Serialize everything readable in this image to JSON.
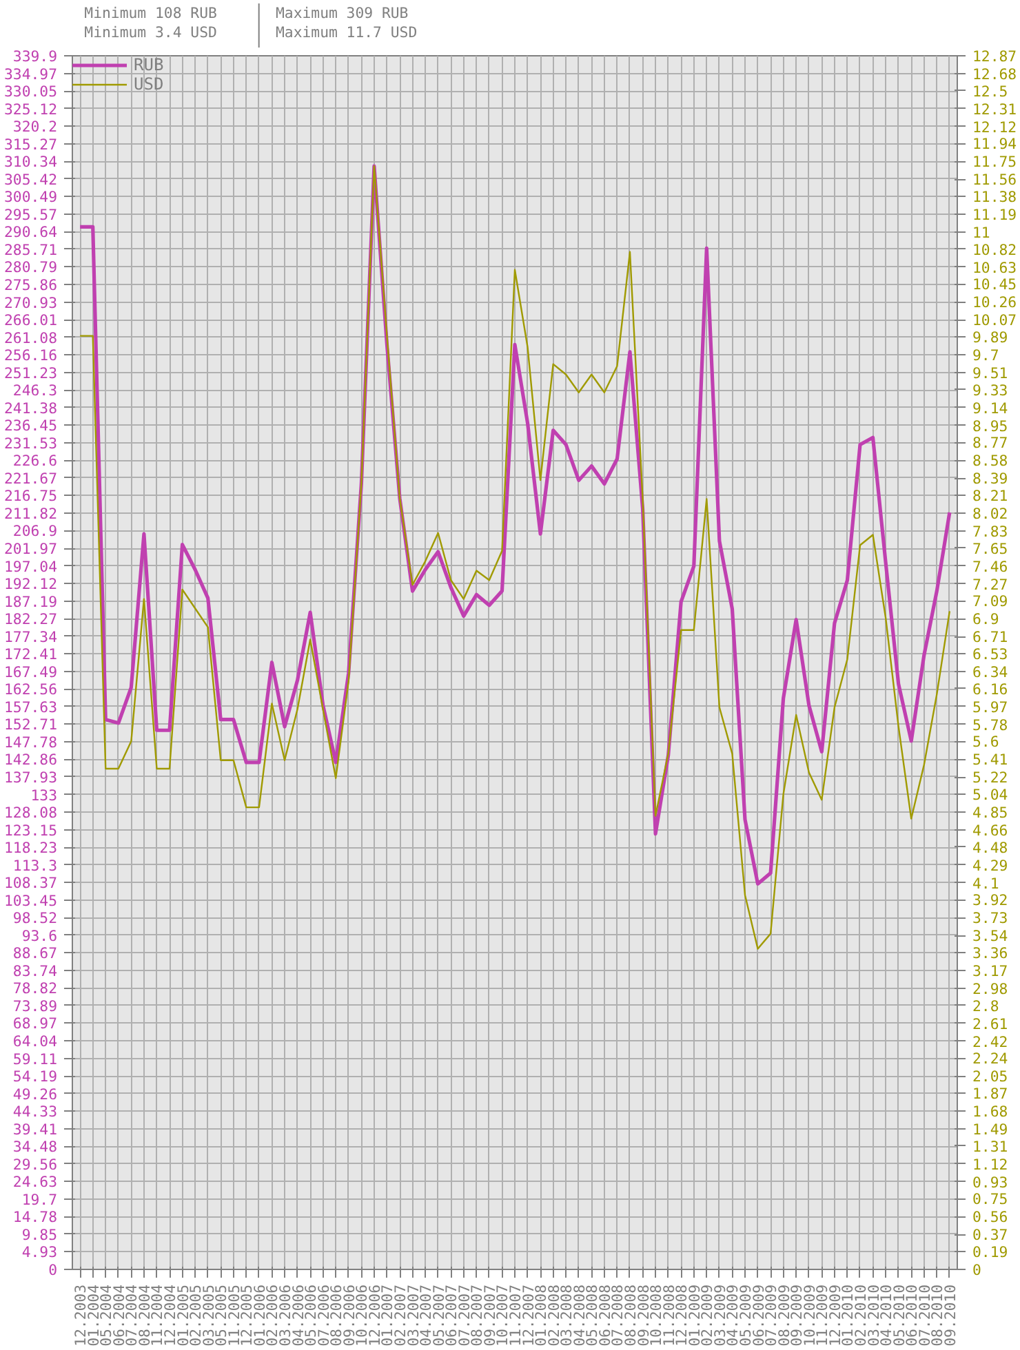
{
  "chart_data": {
    "type": "line",
    "annotations": [
      "Minimum 108 RUB",
      "Minimum 3.4 USD",
      "Maximum 309 RUB",
      "Maximum 11.7 USD"
    ],
    "categories": [
      "12.2003",
      "01.2004",
      "05.2004",
      "06.2004",
      "07.2004",
      "08.2004",
      "11.2004",
      "12.2004",
      "01.2005",
      "02.2005",
      "03.2005",
      "05.2005",
      "11.2005",
      "12.2005",
      "01.2006",
      "02.2006",
      "03.2006",
      "04.2006",
      "05.2006",
      "07.2006",
      "08.2006",
      "09.2006",
      "10.2006",
      "12.2006",
      "01.2007",
      "02.2007",
      "03.2007",
      "04.2007",
      "05.2007",
      "06.2007",
      "07.2007",
      "08.2007",
      "09.2007",
      "10.2007",
      "11.2007",
      "12.2007",
      "01.2008",
      "02.2008",
      "03.2008",
      "04.2008",
      "05.2008",
      "06.2008",
      "07.2008",
      "08.2008",
      "09.2008",
      "10.2008",
      "11.2008",
      "12.2008",
      "01.2009",
      "02.2009",
      "03.2009",
      "04.2009",
      "05.2009",
      "06.2009",
      "07.2009",
      "08.2009",
      "09.2009",
      "10.2009",
      "11.2009",
      "12.2009",
      "01.2010",
      "02.2010",
      "03.2010",
      "04.2010",
      "05.2010",
      "06.2010",
      "07.2010",
      "08.2010",
      "09.2010"
    ],
    "series": [
      {
        "name": "RUB",
        "color": "#c040b0",
        "values": [
          292,
          292,
          154,
          153,
          163,
          206,
          151,
          151,
          203,
          196,
          188,
          154,
          154,
          142,
          142,
          170,
          152,
          165,
          184,
          158,
          142,
          167,
          220,
          309,
          259,
          216,
          190,
          196,
          201,
          191,
          183,
          189,
          186,
          190,
          259,
          237,
          206,
          235,
          231,
          221,
          225,
          220,
          227,
          257,
          213,
          122,
          144,
          187,
          197,
          286,
          204,
          185,
          126,
          108,
          111,
          160,
          182,
          158,
          145,
          181,
          193,
          231,
          233,
          198,
          164,
          148,
          172,
          190,
          212
        ]
      },
      {
        "name": "USD",
        "color": "#a09a00",
        "axis": "y2",
        "values": [
          9.9,
          9.9,
          5.31,
          5.31,
          5.6,
          7.11,
          5.31,
          5.31,
          7.21,
          7.01,
          6.81,
          5.4,
          5.4,
          4.9,
          4.9,
          6.0,
          5.4,
          5.94,
          6.68,
          5.94,
          5.21,
          6.24,
          8.33,
          11.7,
          9.9,
          8.18,
          7.26,
          7.51,
          7.81,
          7.31,
          7.11,
          7.41,
          7.31,
          7.62,
          10.6,
          9.78,
          8.37,
          9.6,
          9.49,
          9.3,
          9.49,
          9.3,
          9.58,
          10.79,
          8.17,
          4.81,
          5.47,
          6.78,
          6.78,
          8.17,
          5.96,
          5.47,
          3.97,
          3.4,
          3.56,
          5.04,
          5.88,
          5.27,
          4.98,
          5.96,
          6.47,
          7.68,
          7.79,
          6.91,
          5.76,
          4.78,
          5.35,
          6.1,
          6.98
        ]
      }
    ],
    "ylim": [
      0,
      339.9
    ],
    "yticks": [
      0,
      4.93,
      9.85,
      14.78,
      19.7,
      24.63,
      29.56,
      34.48,
      39.41,
      44.33,
      49.26,
      54.19,
      59.11,
      64.04,
      68.97,
      73.89,
      78.82,
      83.74,
      88.67,
      93.6,
      98.52,
      103.45,
      108.37,
      113.3,
      118.23,
      123.15,
      128.08,
      133,
      137.93,
      142.86,
      147.78,
      152.71,
      157.63,
      162.56,
      167.49,
      172.41,
      177.34,
      182.27,
      187.19,
      192.12,
      197.04,
      201.97,
      206.9,
      211.82,
      216.75,
      221.67,
      226.6,
      231.53,
      236.45,
      241.38,
      246.3,
      251.23,
      256.16,
      261.08,
      266.01,
      270.93,
      275.86,
      280.79,
      285.71,
      290.64,
      295.57,
      300.49,
      305.42,
      310.34,
      315.27,
      320.2,
      325.12,
      330.05,
      334.97,
      339.9
    ],
    "y2lim": [
      0,
      12.87
    ],
    "y2ticks": [
      0,
      0.19,
      0.37,
      0.56,
      0.75,
      0.93,
      1.12,
      1.31,
      1.49,
      1.68,
      1.87,
      2.05,
      2.24,
      2.42,
      2.61,
      2.8,
      2.98,
      3.17,
      3.36,
      3.54,
      3.73,
      3.92,
      4.1,
      4.29,
      4.48,
      4.66,
      4.85,
      5.04,
      5.22,
      5.41,
      5.6,
      5.78,
      5.97,
      6.16,
      6.34,
      6.53,
      6.71,
      6.9,
      7.09,
      7.27,
      7.46,
      7.65,
      7.83,
      8.02,
      8.21,
      8.39,
      8.58,
      8.77,
      8.95,
      9.14,
      9.33,
      9.51,
      9.7,
      9.89,
      10.07,
      10.26,
      10.45,
      10.63,
      10.82,
      11,
      11.19,
      11.38,
      11.56,
      11.75,
      11.94,
      12.12,
      12.31,
      12.5,
      12.68,
      12.87
    ],
    "grid": true,
    "legend": "top left"
  }
}
